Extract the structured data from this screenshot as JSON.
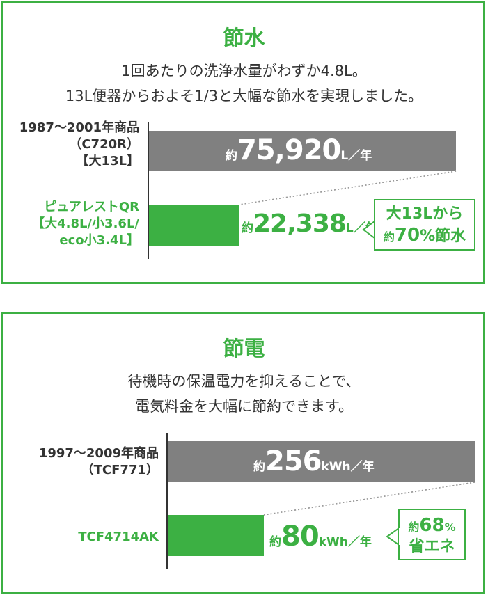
{
  "colors": {
    "accent": "#3cb043",
    "old_bar": "#808080",
    "text": "#333333"
  },
  "water": {
    "title": "節水",
    "desc_line1": "1回あたりの洗浄水量がわずか4.8L。",
    "desc_line2": "13L便器からおよそ1/3と大幅な節水を実現しました。",
    "old_label": [
      "1987〜2001年商品",
      "（C720R）",
      "【大13L】"
    ],
    "new_label": [
      "ピュアレストQR",
      "【大4.8L/小3.6L/",
      "eco小3.4L】"
    ],
    "old_value": {
      "prefix": "約",
      "number": "75,920",
      "unit": "L／年"
    },
    "new_value": {
      "prefix": "約",
      "number": "22,338",
      "unit": "L／年"
    },
    "badge": {
      "line1": "大13Lから",
      "line2_prefix": "約",
      "line2_number": "70",
      "line2_suffix": "%節水"
    }
  },
  "power": {
    "title": "節電",
    "desc_line1": "待機時の保温電力を抑えることで、",
    "desc_line2": "電気料金を大幅に節約できます。",
    "old_label": [
      "1997〜2009年商品",
      "（TCF771）"
    ],
    "new_label": [
      "TCF4714AK"
    ],
    "old_value": {
      "prefix": "約",
      "number": "256",
      "unit": "kWh／年"
    },
    "new_value": {
      "prefix": "約",
      "number": "80",
      "unit": "kWh／年"
    },
    "badge": {
      "line1_prefix": "約",
      "line1_number": "68",
      "line1_suffix": "%",
      "line2": "省エネ"
    }
  },
  "chart_data": [
    {
      "type": "bar",
      "title": "節水",
      "categories": [
        "1987〜2001年商品（C720R）【大13L】",
        "ピュアレストQR【大4.8L/小3.6L/eco小3.4L】"
      ],
      "values": [
        75920,
        22338
      ],
      "unit": "L／年",
      "orientation": "horizontal"
    },
    {
      "type": "bar",
      "title": "節電",
      "categories": [
        "1997〜2009年商品（TCF771）",
        "TCF4714AK"
      ],
      "values": [
        256,
        80
      ],
      "unit": "kWh／年",
      "orientation": "horizontal"
    }
  ]
}
